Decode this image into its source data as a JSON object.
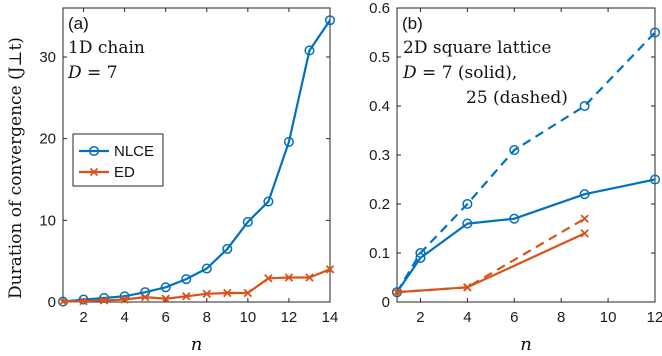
{
  "colors": {
    "nlce": "#0072BD",
    "ed": "#D95319",
    "axis": "#262626"
  },
  "ylabel": "Duration of convergence (J⊥t)",
  "chart_data": [
    {
      "type": "line",
      "panel_label": "(a)",
      "annotation_lines": [
        "1D chain",
        "D = 7"
      ],
      "xlabel": "n",
      "xlim": [
        1,
        14
      ],
      "ylim": [
        0,
        36
      ],
      "xticks": [
        2,
        4,
        6,
        8,
        10,
        12,
        14
      ],
      "yticks": [
        0,
        10,
        20,
        30
      ],
      "legend": {
        "placement": "center-left",
        "entries": [
          "NLCE",
          "ED"
        ]
      },
      "series": [
        {
          "name": "NLCE",
          "marker": "circle",
          "style": "solid",
          "x": [
            1,
            2,
            3,
            4,
            5,
            6,
            7,
            8,
            9,
            10,
            11,
            12,
            13,
            14
          ],
          "y": [
            0.05,
            0.3,
            0.5,
            0.7,
            1.2,
            1.8,
            2.8,
            4.1,
            6.5,
            9.8,
            12.3,
            19.6,
            30.8,
            34.5
          ]
        },
        {
          "name": "ED",
          "marker": "x",
          "style": "solid",
          "x": [
            1,
            2,
            3,
            4,
            5,
            6,
            7,
            8,
            9,
            10,
            11,
            12,
            13,
            14
          ],
          "y": [
            0.05,
            0.1,
            0.2,
            0.3,
            0.6,
            0.4,
            0.7,
            1.0,
            1.1,
            1.1,
            2.9,
            3.0,
            3.0,
            4.0
          ]
        }
      ]
    },
    {
      "type": "line",
      "panel_label": "(b)",
      "annotation_lines": [
        "2D square lattice",
        "D = 7 (solid),",
        "25 (dashed)"
      ],
      "xlabel": "n",
      "xlim": [
        1,
        12
      ],
      "ylim": [
        0,
        0.6
      ],
      "xticks": [
        2,
        4,
        6,
        8,
        10,
        12
      ],
      "yticks": [
        0,
        0.1,
        0.2,
        0.3,
        0.4,
        0.5,
        0.6
      ],
      "series": [
        {
          "marker": "circle",
          "style": "solid",
          "color_key": "nlce",
          "x": [
            1,
            2,
            4,
            6,
            9,
            12
          ],
          "y": [
            0.02,
            0.09,
            0.16,
            0.17,
            0.22,
            0.25
          ]
        },
        {
          "marker": "circle",
          "style": "dashed",
          "color_key": "nlce",
          "x": [
            1,
            2,
            4,
            6,
            9,
            12
          ],
          "y": [
            0.02,
            0.1,
            0.2,
            0.31,
            0.4,
            0.55
          ]
        },
        {
          "marker": "x",
          "style": "solid",
          "color_key": "ed",
          "x": [
            1,
            4,
            9
          ],
          "y": [
            0.02,
            0.03,
            0.14
          ]
        },
        {
          "marker": "x",
          "style": "dashed",
          "color_key": "ed",
          "x": [
            1,
            4,
            9
          ],
          "y": [
            0.02,
            0.03,
            0.17
          ]
        }
      ]
    }
  ]
}
